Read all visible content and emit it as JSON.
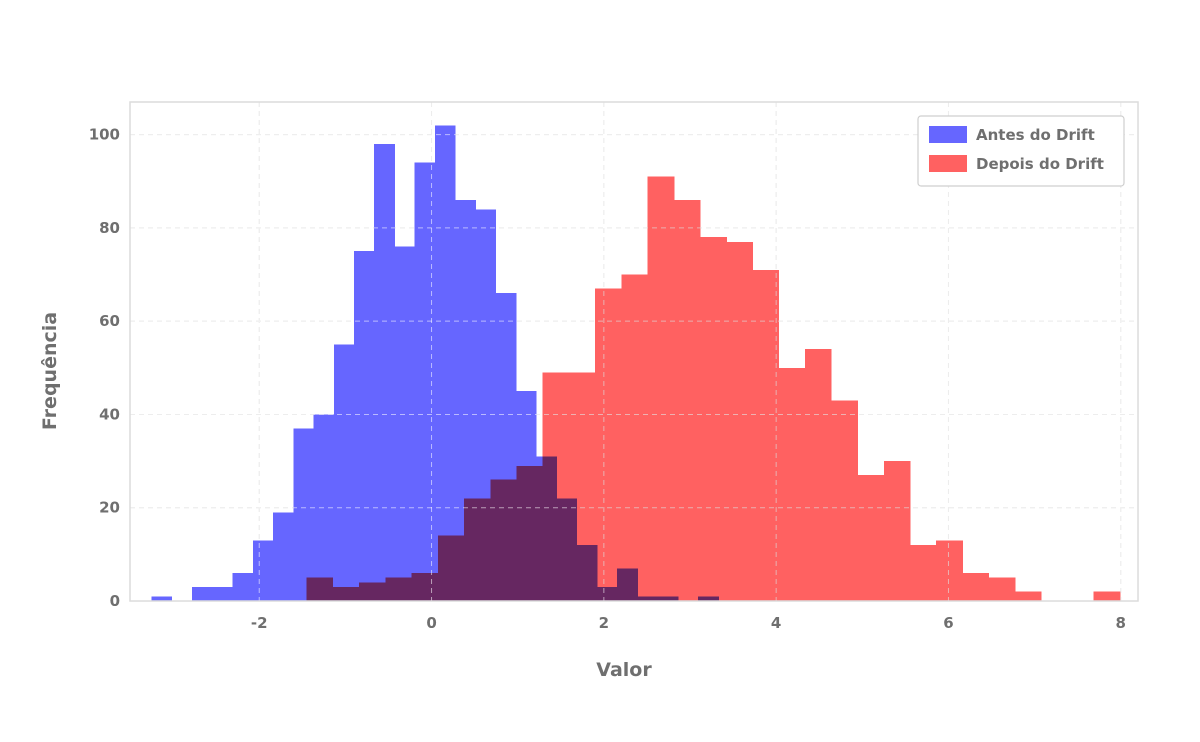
{
  "chart_data": {
    "type": "bar",
    "subtype": "overlapping-histogram",
    "xlabel": "Valor",
    "ylabel": "Frequência",
    "xlim": [
      -3.5,
      8.2
    ],
    "ylim": [
      0,
      107
    ],
    "xticks": [
      -2,
      0,
      2,
      4,
      6,
      8
    ],
    "yticks": [
      0,
      20,
      40,
      60,
      80,
      100
    ],
    "grid": true,
    "legend_position": "top-right",
    "series": [
      {
        "name": "Antes do Drift",
        "color": "#6666ff",
        "bin_start": -3.25,
        "bin_width": 0.235,
        "values": [
          1,
          0,
          3,
          3,
          6,
          13,
          19,
          37,
          40,
          55,
          75,
          98,
          76,
          94,
          102,
          86,
          84,
          66,
          45,
          31,
          22,
          12,
          3,
          7,
          1,
          1,
          0,
          1
        ]
      },
      {
        "name": "Depois do Drift",
        "color": "#ff6161",
        "bin_start": -1.45,
        "bin_width": 0.3045,
        "values": [
          5,
          3,
          4,
          5,
          6,
          14,
          22,
          26,
          29,
          49,
          49,
          67,
          70,
          91,
          86,
          78,
          77,
          71,
          50,
          54,
          43,
          27,
          30,
          12,
          13,
          6,
          5,
          2,
          0,
          0,
          2
        ]
      }
    ]
  }
}
